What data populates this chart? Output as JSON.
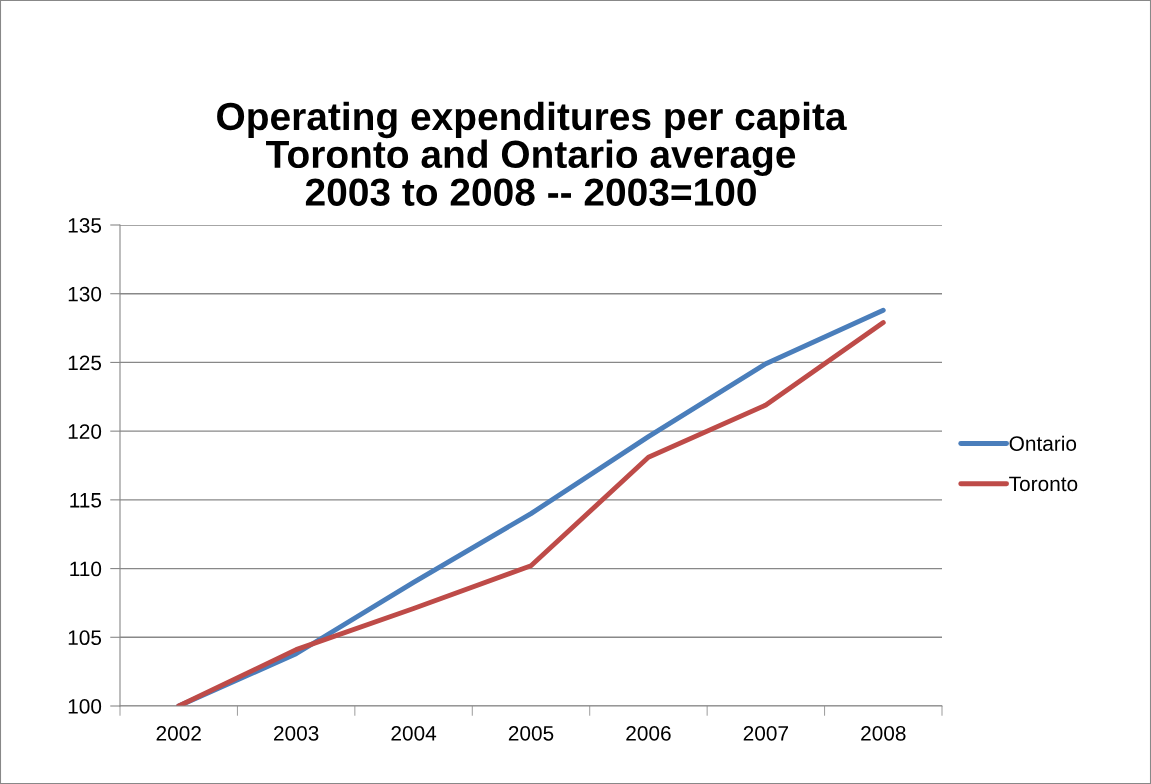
{
  "chart_data": {
    "type": "line",
    "title": "Operating expenditures per capita\nToronto and Ontario average\n2003 to 2008 -- 2003=100",
    "categories": [
      "2002",
      "2003",
      "2004",
      "2005",
      "2006",
      "2007",
      "2008"
    ],
    "series": [
      {
        "name": "Ontario",
        "color": "#4a7ebb",
        "values": [
          100,
          103.8,
          109.0,
          114.0,
          119.6,
          124.9,
          128.8
        ]
      },
      {
        "name": "Toronto",
        "color": "#be4b48",
        "values": [
          100,
          104.1,
          107.1,
          110.2,
          118.1,
          121.9,
          127.9
        ]
      }
    ],
    "ylim": [
      100,
      135
    ],
    "yticks": [
      100,
      105,
      110,
      115,
      120,
      125,
      130,
      135
    ],
    "grid": "y",
    "legend": "right",
    "marker": "none",
    "line_style": "solid"
  }
}
